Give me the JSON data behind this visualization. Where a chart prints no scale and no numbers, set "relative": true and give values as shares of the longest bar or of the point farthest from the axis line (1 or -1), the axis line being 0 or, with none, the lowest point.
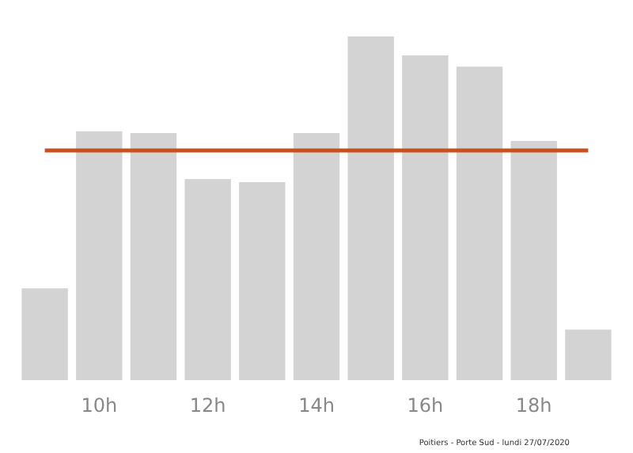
{
  "chart_data": {
    "type": "bar",
    "relative": true,
    "categories": [
      null,
      "10h",
      null,
      "12h",
      null,
      "14h",
      null,
      "16h",
      null,
      "18h",
      null
    ],
    "values": [
      0.267,
      0.724,
      0.719,
      0.585,
      0.576,
      0.719,
      1,
      0.945,
      0.912,
      0.696,
      0.147
    ],
    "color": "#d3d3d3",
    "ref_lines": [
      {
        "axis": "y",
        "value": 0.668,
        "color": "#c8501e"
      }
    ],
    "annotations": [
      "Poitiers - Porte Sud - lundi 27/07/2020"
    ]
  }
}
